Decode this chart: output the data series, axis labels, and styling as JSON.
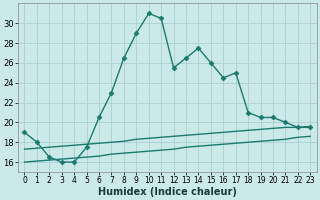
{
  "title": "",
  "xlabel": "Humidex (Indice chaleur)",
  "bg_color": "#cce9ea",
  "line_color": "#1a7a6e",
  "x_values": [
    0,
    1,
    2,
    3,
    4,
    5,
    6,
    7,
    8,
    9,
    10,
    11,
    12,
    13,
    14,
    15,
    16,
    17,
    18,
    19,
    20,
    21,
    22,
    23
  ],
  "y_main": [
    19.0,
    18.0,
    16.5,
    16.0,
    16.0,
    17.5,
    20.5,
    23.0,
    26.5,
    29.0,
    31.0,
    30.5,
    25.5,
    26.5,
    27.5,
    26.0,
    24.5,
    25.0,
    21.0,
    20.5,
    20.5,
    20.0,
    19.5,
    19.5
  ],
  "y_line1": [
    17.3,
    17.4,
    17.5,
    17.6,
    17.7,
    17.8,
    17.9,
    18.0,
    18.1,
    18.3,
    18.4,
    18.5,
    18.6,
    18.7,
    18.8,
    18.9,
    19.0,
    19.1,
    19.2,
    19.3,
    19.4,
    19.5,
    19.5,
    19.6
  ],
  "y_line2": [
    16.0,
    16.1,
    16.2,
    16.3,
    16.4,
    16.5,
    16.6,
    16.8,
    16.9,
    17.0,
    17.1,
    17.2,
    17.3,
    17.5,
    17.6,
    17.7,
    17.8,
    17.9,
    18.0,
    18.1,
    18.2,
    18.3,
    18.5,
    18.6
  ],
  "xlim": [
    -0.5,
    23.5
  ],
  "ylim": [
    15.0,
    32.0
  ],
  "yticks": [
    16,
    18,
    20,
    22,
    24,
    26,
    28,
    30
  ],
  "xticks": [
    0,
    1,
    2,
    3,
    4,
    5,
    6,
    7,
    8,
    9,
    10,
    11,
    12,
    13,
    14,
    15,
    16,
    17,
    18,
    19,
    20,
    21,
    22,
    23
  ],
  "grid_color": "#aacfd0",
  "marker": "D",
  "markersize": 2.5,
  "linewidth": 1.0
}
